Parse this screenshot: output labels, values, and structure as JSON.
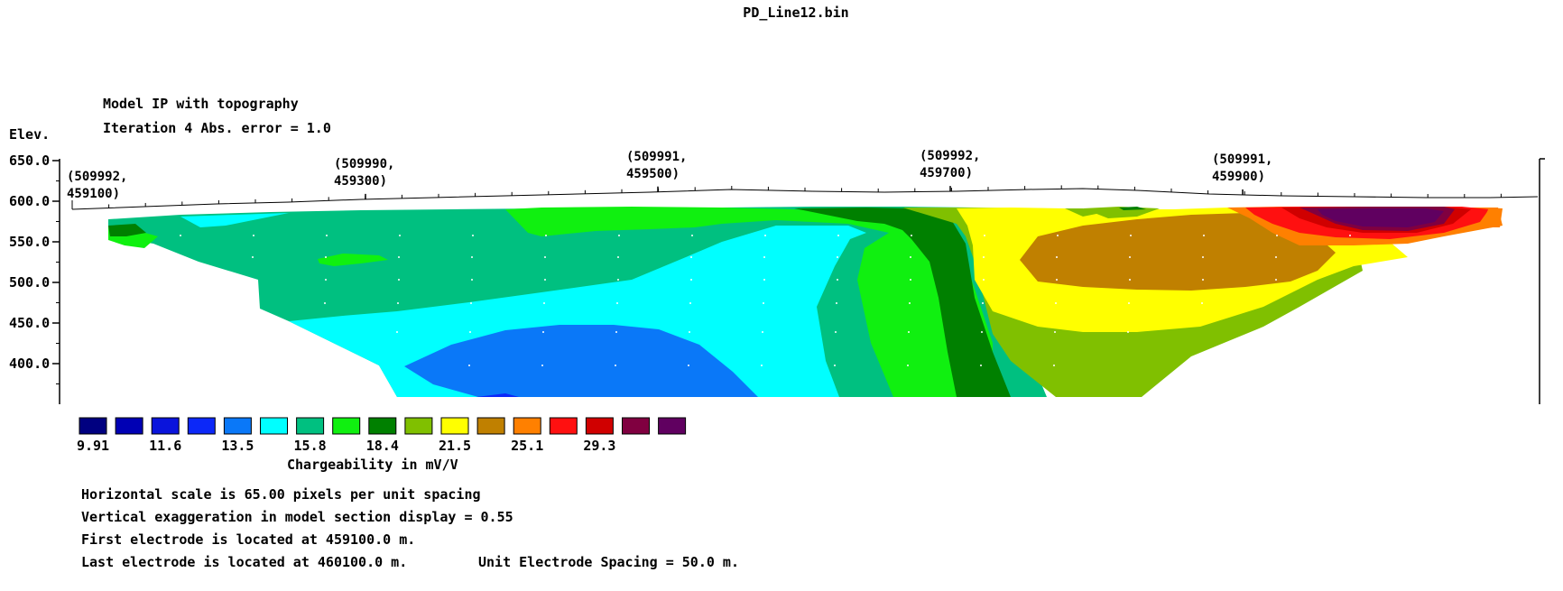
{
  "title": "PD_Line12.bin",
  "model_title": "Model IP with topography",
  "iteration_text": "Iteration 4 Abs. error = 1.0",
  "elev_label": "Elev.",
  "chart_data": {
    "type": "heatmap",
    "subtype": "resistivity-IP pseudosection (contoured model section with topography)",
    "ylabel": "Elev.",
    "ylim": [
      350,
      650
    ],
    "y_ticks": [
      "650.0",
      "600.0",
      "550.0",
      "500.0",
      "450.0",
      "400.0"
    ],
    "y_tick_values": [
      650,
      600,
      550,
      500,
      450,
      400
    ],
    "x_unit_spacing_m": 50,
    "first_electrode_m": 459100,
    "last_electrode_m": 460100,
    "coordinate_labels": [
      {
        "line1": "(509992,",
        "line2": "459100)",
        "station_m": 459100
      },
      {
        "line1": "(509990,",
        "line2": "459300)",
        "station_m": 459300
      },
      {
        "line1": "(509991,",
        "line2": "459500)",
        "station_m": 459500
      },
      {
        "line1": "(509992,",
        "line2": "459700)",
        "station_m": 459700
      },
      {
        "line1": "(509991,",
        "line2": "459900)",
        "station_m": 459900
      }
    ],
    "legend": {
      "colors": [
        "#000080",
        "#0000b4",
        "#0a14dc",
        "#0c28f8",
        "#0a78f8",
        "#00ffff",
        "#00c080",
        "#10f010",
        "#008000",
        "#80c000",
        "#ffff00",
        "#c08000",
        "#ff8000",
        "#ff1010",
        "#d00000",
        "#800040",
        "#600060"
      ],
      "labels": [
        "9.91",
        "11.6",
        "13.5",
        "15.8",
        "18.4",
        "21.5",
        "25.1",
        "29.3"
      ],
      "title": "Chargeability in mV/V"
    }
  },
  "footer": {
    "line1": "Horizontal scale is 65.00 pixels per unit spacing",
    "line2": "Vertical exaggeration in model section display = 0.55",
    "line3": "First electrode is located at 459100.0  m.",
    "line4_a": "Last electrode is located at 460100.0 m.",
    "line4_b": "Unit Electrode Spacing = 50.0 m."
  }
}
